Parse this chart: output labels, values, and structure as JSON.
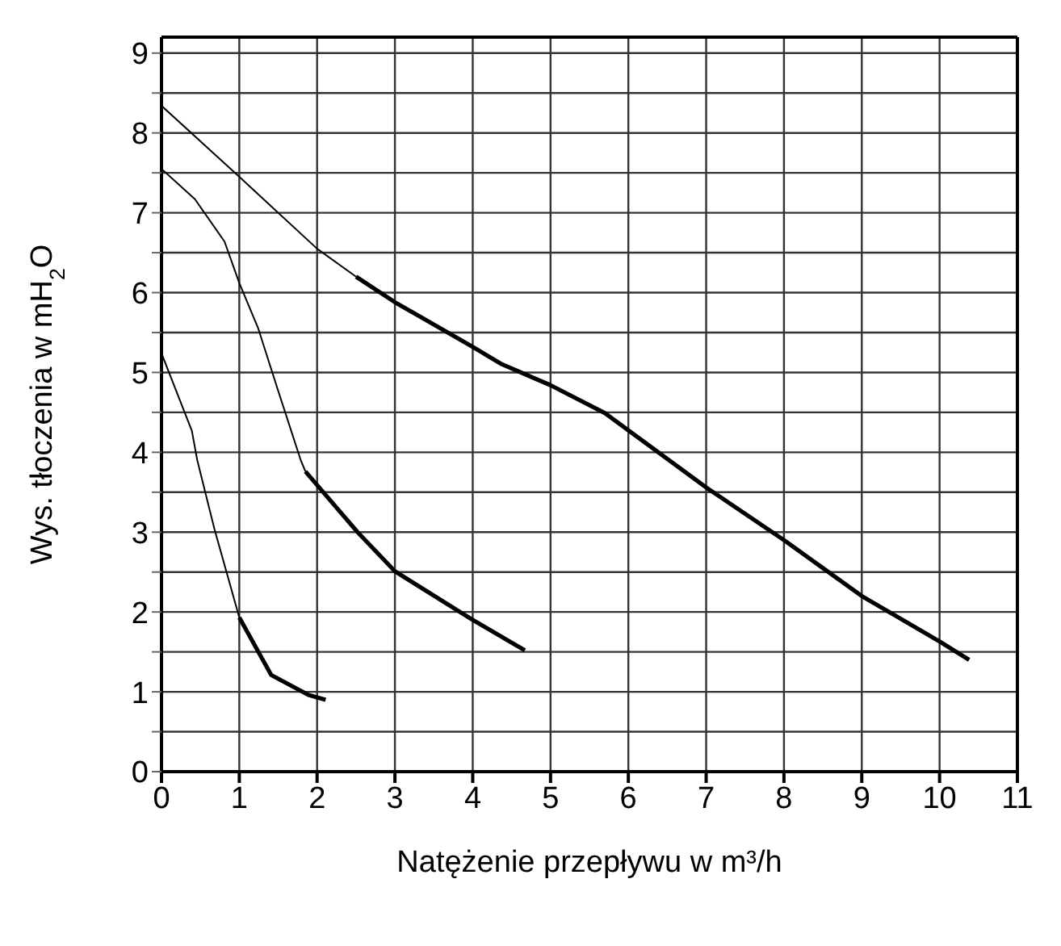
{
  "chart_data": {
    "type": "line",
    "xlabel": "Natężenie przepływu w m³/h",
    "ylabel": "Wys. tłoczenia w mH$_{2}$O",
    "xlim": [
      0,
      11
    ],
    "xticks": [
      0,
      1,
      2,
      3,
      4,
      5,
      6,
      7,
      8,
      9,
      10,
      11
    ],
    "ylim": [
      0,
      9.2
    ],
    "yticks": [
      0,
      {
        "value": 0.5,
        "label": null
      },
      1,
      {
        "value": 1.5,
        "label": null
      },
      2,
      {
        "value": 2.5,
        "label": null
      },
      3,
      {
        "value": 3.5,
        "label": null
      },
      4,
      {
        "value": 4.5,
        "label": null
      },
      5,
      {
        "value": 5.5,
        "label": null
      },
      6,
      {
        "value": 6.5,
        "label": null
      },
      7,
      {
        "value": 7.5,
        "label": null
      },
      8,
      {
        "value": 8.5,
        "label": null
      },
      9
    ],
    "grid": true,
    "marker": "none",
    "line_style": "solid",
    "series": [
      {
        "color": "#000000",
        "x": [
          0,
          1,
          2,
          2.5
        ],
        "values": [
          8.34,
          7.45,
          6.55,
          6.2
        ]
      },
      {
        "color": "#000000",
        "x": [
          2.5,
          3,
          4,
          4.36,
          5,
          5.7,
          7,
          8,
          9,
          10,
          10.38
        ],
        "values": [
          6.2,
          5.88,
          5.32,
          5.11,
          4.84,
          4.49,
          3.56,
          2.9,
          2.2,
          1.63,
          1.4
        ]
      },
      {
        "color": "#000000",
        "x": [
          0,
          0.43,
          0.81,
          1,
          1.24,
          1.5,
          1.79,
          1.85
        ],
        "values": [
          7.55,
          7.17,
          6.64,
          6.12,
          5.56,
          4.77,
          3.9,
          3.76
        ]
      },
      {
        "color": "#000000",
        "x": [
          1.85,
          2.52,
          3,
          4,
          4.67
        ],
        "values": [
          3.76,
          3,
          2.51,
          1.9,
          1.52
        ]
      },
      {
        "color": "#000000",
        "x": [
          0,
          0.39,
          0.46,
          0.68,
          1
        ],
        "values": [
          5.24,
          4.27,
          3.9,
          3.04,
          1.93
        ]
      },
      {
        "color": "#000000",
        "x": [
          1,
          1.41,
          1.89,
          2.11
        ],
        "values": [
          1.93,
          1.21,
          0.96,
          0.9
        ]
      }
    ]
  }
}
